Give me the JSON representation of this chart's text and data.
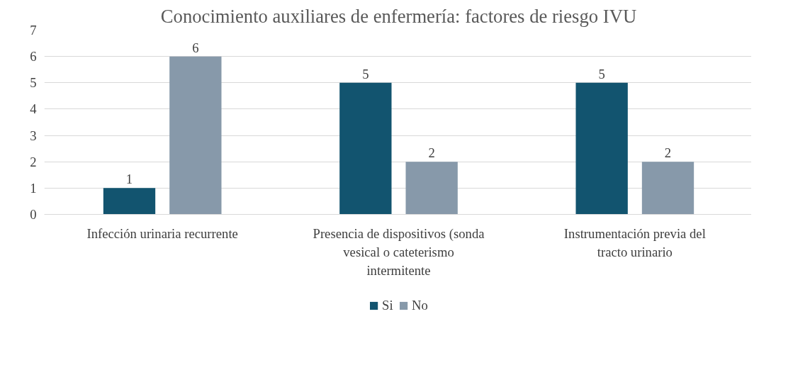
{
  "chart_data": {
    "type": "bar",
    "title": "Conocimiento auxiliares de enfermería: factores de riesgo IVU",
    "categories": [
      "Infección urinaria recurrente",
      "Presencia de dispositivos (sonda vesical o cateterismo intermitente",
      "Instrumentación previa del tracto urinario"
    ],
    "series": [
      {
        "name": "Si",
        "color": "#12546f",
        "values": [
          1,
          5,
          5
        ]
      },
      {
        "name": "No",
        "color": "#8799aa",
        "values": [
          6,
          2,
          2
        ]
      }
    ],
    "ylim": [
      0,
      7
    ],
    "yticks": [
      0,
      1,
      2,
      3,
      4,
      5,
      6,
      7
    ],
    "grid": "y",
    "legend": "bottom",
    "data_labels": true
  }
}
